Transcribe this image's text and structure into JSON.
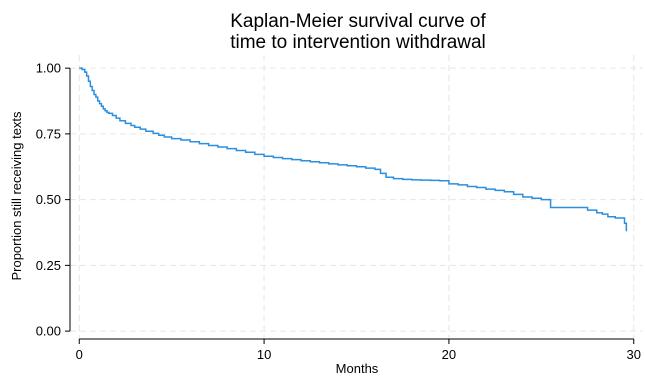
{
  "chart_data": {
    "type": "line",
    "title_lines": [
      "Kaplan-Meier survival curve of",
      "time to intervention withdrawal"
    ],
    "xlabel": "Months",
    "ylabel": "Proportion still receiving texts",
    "xlim": [
      -0.5,
      30.5
    ],
    "ylim": [
      -0.03,
      1.05
    ],
    "x_ticks": [
      0,
      10,
      20,
      30
    ],
    "x_tick_labels": [
      "0",
      "10",
      "20",
      "30"
    ],
    "y_ticks": [
      0,
      0.25,
      0.5,
      0.75,
      1
    ],
    "y_tick_labels": [
      "0.00",
      "0.25",
      "0.50",
      "0.75",
      "1.00"
    ],
    "grid": true,
    "series": [
      {
        "step": true,
        "color": "#2b8fde",
        "x": [
          0,
          0.15,
          0.3,
          0.4,
          0.5,
          0.6,
          0.7,
          0.8,
          0.9,
          1.0,
          1.1,
          1.2,
          1.3,
          1.4,
          1.5,
          1.6,
          1.8,
          2.0,
          2.2,
          2.5,
          2.8,
          3.0,
          3.3,
          3.6,
          4.0,
          4.3,
          4.6,
          5.0,
          5.5,
          6.0,
          6.5,
          7.0,
          7.5,
          8.0,
          8.5,
          9.0,
          9.5,
          10.0,
          10.5,
          11.0,
          11.5,
          12.0,
          12.5,
          13.0,
          13.5,
          14.0,
          14.5,
          15.0,
          15.5,
          16.0,
          16.3,
          16.6,
          17.0,
          17.5,
          18.0,
          18.5,
          19.0,
          19.5,
          20.0,
          20.5,
          21.0,
          21.5,
          22.0,
          22.5,
          23.0,
          23.5,
          24.0,
          24.5,
          25.0,
          25.5,
          26.0,
          26.5,
          27.0,
          27.5,
          28.0,
          28.3,
          28.6,
          29.0,
          29.3,
          29.5,
          29.6
        ],
        "y": [
          1.0,
          0.995,
          0.985,
          0.97,
          0.95,
          0.93,
          0.915,
          0.9,
          0.89,
          0.875,
          0.865,
          0.855,
          0.845,
          0.838,
          0.832,
          0.828,
          0.82,
          0.81,
          0.8,
          0.79,
          0.782,
          0.775,
          0.768,
          0.76,
          0.752,
          0.745,
          0.738,
          0.732,
          0.727,
          0.72,
          0.713,
          0.706,
          0.7,
          0.694,
          0.687,
          0.68,
          0.672,
          0.665,
          0.66,
          0.656,
          0.652,
          0.648,
          0.644,
          0.64,
          0.636,
          0.632,
          0.629,
          0.625,
          0.62,
          0.615,
          0.6,
          0.585,
          0.58,
          0.577,
          0.575,
          0.574,
          0.573,
          0.572,
          0.56,
          0.556,
          0.55,
          0.546,
          0.54,
          0.535,
          0.53,
          0.52,
          0.51,
          0.505,
          0.5,
          0.47,
          0.47,
          0.47,
          0.47,
          0.46,
          0.45,
          0.445,
          0.435,
          0.43,
          0.43,
          0.41,
          0.38
        ]
      }
    ]
  }
}
